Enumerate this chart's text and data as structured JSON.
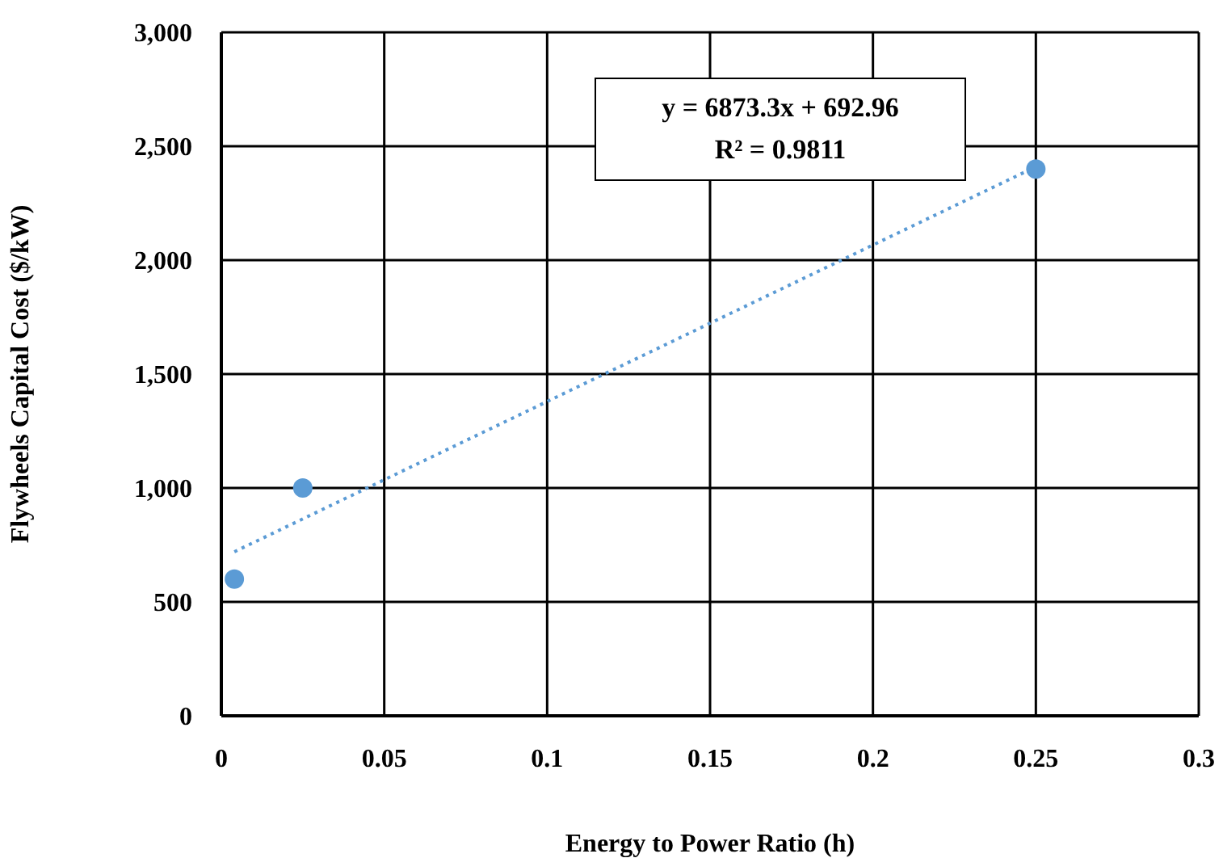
{
  "chart_data": {
    "type": "scatter",
    "xlabel": "Energy to Power Ratio (h)",
    "ylabel": "Flywheels Capital Cost ($/kW)",
    "annotations": [
      "y = 6873.3x + 692.96\nR² = 0.9811"
    ],
    "series": [
      {
        "color": "#5b9bd5",
        "x": [
          0.004,
          0.025,
          0.25
        ],
        "values": [
          600,
          1000,
          2400
        ],
        "marker": "circle"
      },
      {
        "type": "line",
        "color": "#5b9bd5",
        "x": [
          0.004,
          0.25
        ],
        "values": [
          720,
          2410
        ],
        "line_style": "dotted",
        "marker": "none"
      }
    ],
    "xlim": [
      0,
      0.3
    ],
    "xticks": [
      0,
      0.05,
      0.1,
      0.15,
      0.2,
      0.25,
      0.3
    ],
    "ylim": [
      0,
      3000
    ],
    "yticks": [
      {
        "value": 0,
        "label": "0"
      },
      {
        "value": 500,
        "label": "500"
      },
      {
        "value": 1000,
        "label": "1,000"
      },
      {
        "value": 1500,
        "label": "1,500"
      },
      {
        "value": 2000,
        "label": "2,000"
      },
      {
        "value": 2500,
        "label": "2,500"
      },
      {
        "value": 3000,
        "label": "3,000"
      }
    ],
    "grid": true,
    "legend": false
  }
}
